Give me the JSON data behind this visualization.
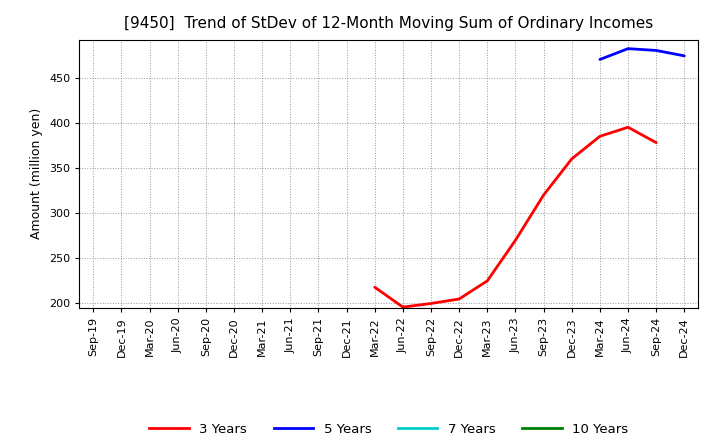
{
  "title": "[9450]  Trend of StDev of 12-Month Moving Sum of Ordinary Incomes",
  "ylabel": "Amount (million yen)",
  "x_labels": [
    "Sep-19",
    "Dec-19",
    "Mar-20",
    "Jun-20",
    "Sep-20",
    "Dec-20",
    "Mar-21",
    "Jun-21",
    "Sep-21",
    "Dec-21",
    "Mar-22",
    "Jun-22",
    "Sep-22",
    "Dec-22",
    "Mar-23",
    "Jun-23",
    "Sep-23",
    "Dec-23",
    "Mar-24",
    "Jun-24",
    "Sep-24",
    "Dec-24"
  ],
  "ylim": [
    195,
    492
  ],
  "yticks": [
    200,
    250,
    300,
    350,
    400,
    450
  ],
  "red_x": [
    10,
    11,
    12,
    13,
    14,
    15,
    16,
    17,
    18,
    19,
    20
  ],
  "red_y": [
    218,
    196,
    200,
    205,
    225,
    270,
    320,
    360,
    385,
    395,
    378
  ],
  "blue_x": [
    18,
    19,
    20,
    21
  ],
  "blue_y": [
    470,
    482,
    480,
    474
  ],
  "line_colors": {
    "3 Years": "#ff0000",
    "5 Years": "#0000ff",
    "7 Years": "#00cccc",
    "10 Years": "#008000"
  },
  "legend_labels": [
    "3 Years",
    "5 Years",
    "7 Years",
    "10 Years"
  ],
  "background_color": "#ffffff",
  "grid_color": "#999999",
  "title_fontsize": 11,
  "axis_fontsize": 9,
  "tick_fontsize": 8
}
